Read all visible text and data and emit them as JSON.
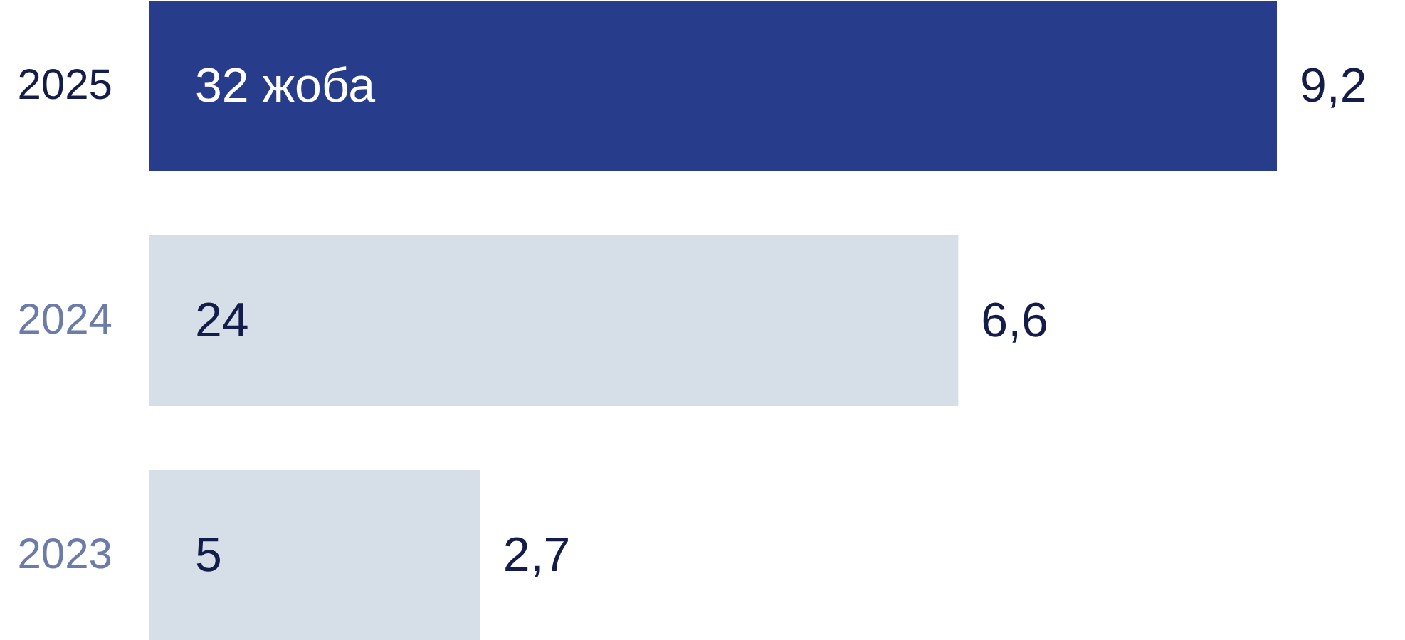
{
  "chart_data": {
    "type": "bar",
    "orientation": "horizontal",
    "categories": [
      "2025",
      "2024",
      "2023"
    ],
    "values": [
      9.2,
      6.6,
      2.7
    ],
    "colors": [
      "#283c8c",
      "#d6dee8",
      "#d6dee8"
    ],
    "value_labels": [
      "9,2",
      "6,6",
      "2,7"
    ],
    "annotations": [
      "32 жоба",
      "24",
      "5"
    ]
  }
}
